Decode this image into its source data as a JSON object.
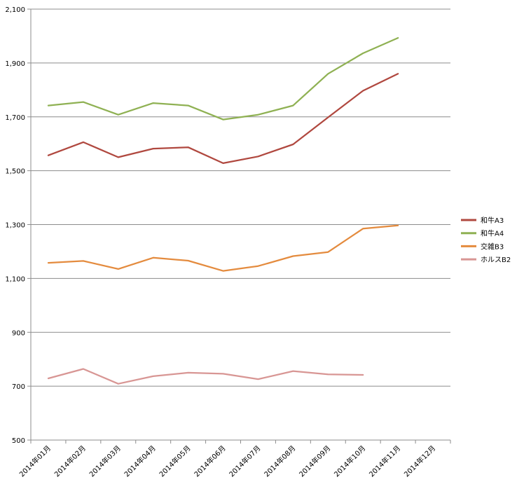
{
  "chart_data": {
    "type": "line",
    "categories": [
      "2014年01月",
      "2014年02月",
      "2014年03月",
      "2014年04月",
      "2014年05月",
      "2014年06月",
      "2014年07月",
      "2014年08月",
      "2014年09月",
      "2014年10月",
      "2014年11月",
      "2014年12月"
    ],
    "y_ticks": [
      "500",
      "700",
      "900",
      "1,100",
      "1,300",
      "1,500",
      "1,700",
      "1,900",
      "2,100"
    ],
    "ylim": [
      500,
      2100
    ],
    "y_tick_values": [
      500,
      700,
      900,
      1100,
      1300,
      1500,
      1700,
      1900,
      2100
    ],
    "grid": true,
    "legend_position": "right",
    "series": [
      {
        "name": "和牛A3",
        "color": "#b0483f",
        "values": [
          1557,
          1606,
          1550,
          1582,
          1587,
          1528,
          1553,
          1598,
          1698,
          1797,
          1860,
          null
        ]
      },
      {
        "name": "和牛A4",
        "color": "#8fb153",
        "values": [
          1742,
          1755,
          1708,
          1751,
          1742,
          1690,
          1708,
          1742,
          1860,
          1936,
          1993,
          null
        ]
      },
      {
        "name": "交雑B3",
        "color": "#e48b3e",
        "values": [
          1158,
          1165,
          1135,
          1177,
          1166,
          1128,
          1146,
          1183,
          1198,
          1285,
          1297,
          null
        ]
      },
      {
        "name": "ホルスB2",
        "color": "#d89694",
        "values": [
          729,
          764,
          709,
          737,
          750,
          746,
          726,
          756,
          744,
          742,
          null,
          null
        ]
      }
    ]
  }
}
